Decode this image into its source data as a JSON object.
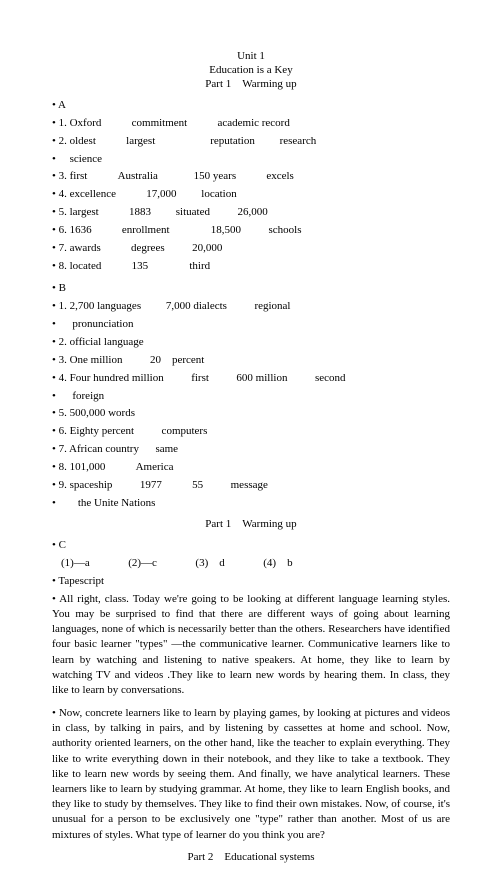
{
  "header": {
    "unit": "Unit 1",
    "title": "Education is a Key",
    "part": "Part 1    Warming up"
  },
  "sectionA": {
    "label": "A",
    "items": [
      "1. Oxford           commitment           academic record",
      "2. oldest           largest                    reputation         research",
      "    science",
      "3. first           Australia             150 years           excels",
      "4. excellence           17,000         location",
      "5. largest           1883         situated          26,000",
      "6. 1636           enrollment               18,500          schools",
      "7. awards           degrees          20,000",
      "8. located           135               third"
    ]
  },
  "sectionB": {
    "label": "B",
    "items": [
      "1. 2,700 languages         7,000 dialects          regional",
      "     pronunciation",
      "2. official language",
      "3. One million          20    percent",
      "4. Four hundred million          first          600 million          second",
      "     foreign",
      "5. 500,000 words",
      "6. Eighty percent          computers",
      "7. African country      same",
      "8. 101,000           America",
      "9. spaceship          1977           55          message",
      "       the Unite Nations"
    ]
  },
  "partLabel2": "Part 1    Warming up",
  "sectionC": {
    "label": "C",
    "answers": "(1)—a              (2)—c              (3)    d              (4)    b",
    "tape": "Tapescript",
    "para1": "All right, class. Today we're going to be looking at different language learning styles. You may be surprised to find that there are different ways of going about learning languages, none of which is necessarily better than the others. Researchers have identified four basic learner \"types\" —the communicative learner. Communicative learners like to learn by watching and listening to native speakers. At home, they like to learn by watching TV and videos .They like to learn new words by hearing them. In class, they like to learn by conversations.",
    "para2": "Now, concrete learners like to learn by playing games, by looking at pictures and videos in class, by talking in pairs, and by listening by cassettes at home and school. Now, authority oriented learners, on the other hand, like the teacher to explain everything. They like to write everything down in their notebook, and they like to take a textbook. They like to learn new words by seeing them. And finally, we have analytical learners. These learners like to learn by studying grammar. At home, they like to learn English books, and they like to study by themselves. They like to find their own mistakes. Now, of course, it's unusual for a person to be exclusively one \"type\" rather than another. Most of us are mixtures of styles. What type of learner do you think you are?"
  },
  "part2": "Part 2    Educational systems"
}
